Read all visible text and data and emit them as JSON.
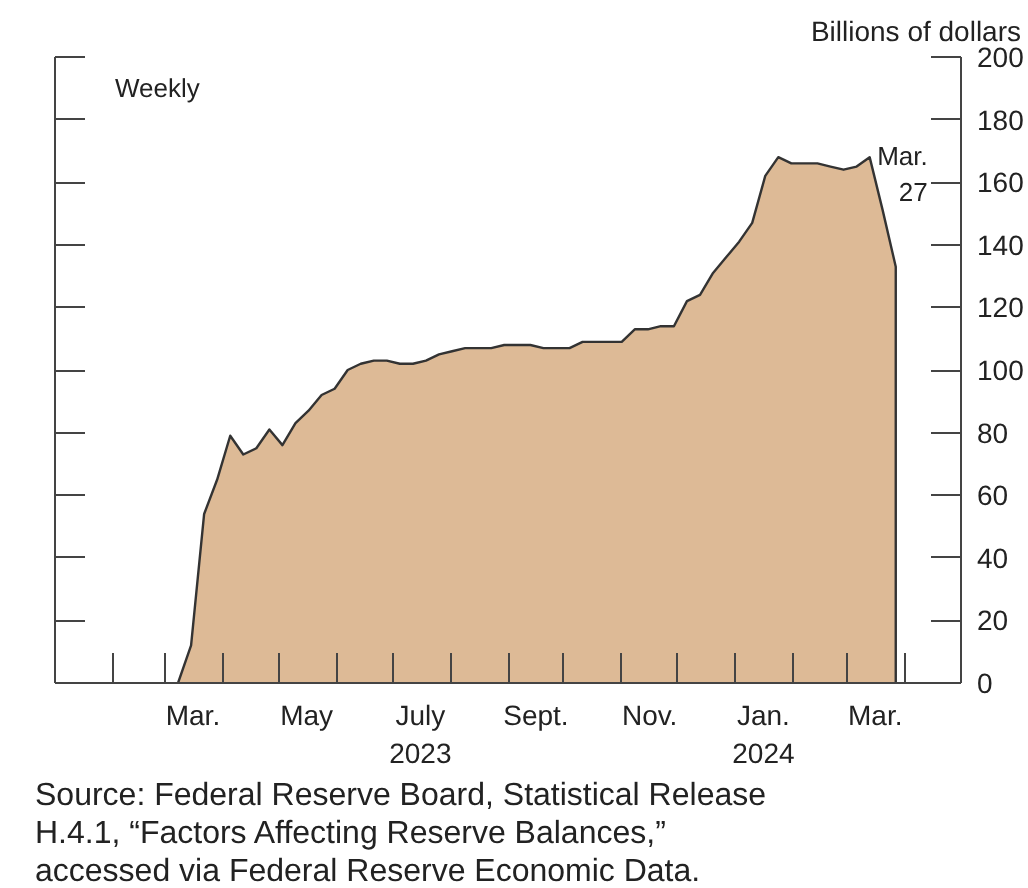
{
  "chart_data": {
    "type": "area",
    "ylabel": "Billions of dollars",
    "x": [
      "2023-03-08",
      "2023-03-15",
      "2023-03-22",
      "2023-03-29",
      "2023-04-05",
      "2023-04-12",
      "2023-04-19",
      "2023-04-26",
      "2023-05-03",
      "2023-05-10",
      "2023-05-17",
      "2023-05-24",
      "2023-05-31",
      "2023-06-07",
      "2023-06-14",
      "2023-06-21",
      "2023-06-28",
      "2023-07-05",
      "2023-07-12",
      "2023-07-19",
      "2023-07-26",
      "2023-08-02",
      "2023-08-09",
      "2023-08-16",
      "2023-08-23",
      "2023-08-30",
      "2023-09-06",
      "2023-09-13",
      "2023-09-20",
      "2023-09-27",
      "2023-10-04",
      "2023-10-11",
      "2023-10-18",
      "2023-10-25",
      "2023-11-01",
      "2023-11-08",
      "2023-11-15",
      "2023-11-22",
      "2023-11-29",
      "2023-12-06",
      "2023-12-13",
      "2023-12-20",
      "2023-12-27",
      "2024-01-03",
      "2024-01-10",
      "2024-01-17",
      "2024-01-24",
      "2024-01-31",
      "2024-02-07",
      "2024-02-14",
      "2024-02-21",
      "2024-02-28",
      "2024-03-06",
      "2024-03-13",
      "2024-03-20",
      "2024-03-27"
    ],
    "series": [
      {
        "color": "#ddba96",
        "values": [
          0,
          12,
          54,
          65,
          79,
          73,
          75,
          81,
          76,
          83,
          87,
          92,
          94,
          100,
          102,
          103,
          103,
          102,
          102,
          103,
          105,
          106,
          107,
          107,
          107,
          108,
          108,
          108,
          107,
          107,
          107,
          109,
          109,
          109,
          109,
          113,
          113,
          114,
          114,
          122,
          124,
          131,
          136,
          141,
          147,
          162,
          168,
          166,
          166,
          166,
          165,
          164,
          165,
          168,
          151,
          133
        ]
      }
    ],
    "xlim": [
      "2023-01-01",
      "2024-05-01"
    ],
    "xticks": [
      {
        "value": "2023-01-01",
        "label": null
      },
      {
        "value": "2023-02-01",
        "label": null
      },
      {
        "value": "2023-03-01",
        "label": null
      },
      {
        "value": "2023-04-01",
        "label": null
      },
      {
        "value": "2023-05-01",
        "label": null
      },
      {
        "value": "2023-06-01",
        "label": null
      },
      {
        "value": "2023-07-01",
        "label": null
      },
      {
        "value": "2023-08-01",
        "label": null
      },
      {
        "value": "2023-09-01",
        "label": null
      },
      {
        "value": "2023-10-01",
        "label": null
      },
      {
        "value": "2023-11-01",
        "label": null
      },
      {
        "value": "2023-12-01",
        "label": null
      },
      {
        "value": "2024-01-01",
        "label": null
      },
      {
        "value": "2024-02-01",
        "label": null
      },
      {
        "value": "2024-03-01",
        "label": null
      },
      {
        "value": "2024-04-01",
        "label": null
      },
      {
        "value": "2023-03-16",
        "label": "Mar."
      },
      {
        "value": "2023-05-16",
        "label": "May"
      },
      {
        "value": "2023-07-16",
        "label": "July\n2023"
      },
      {
        "value": "2023-09-16",
        "label": "Sept."
      },
      {
        "value": "2023-11-16",
        "label": "Nov."
      },
      {
        "value": "2024-01-16",
        "label": "Jan.\n2024"
      },
      {
        "value": "2024-03-16",
        "label": "Mar."
      }
    ],
    "ylim": [
      0,
      200
    ],
    "yticks": [
      0,
      20,
      40,
      60,
      80,
      100,
      120,
      140,
      160,
      180,
      200
    ],
    "grid": false,
    "annotations": [
      "Weekly",
      {
        "text": "Mar.\n27",
        "x": "2024-03-27",
        "y": 133
      },
      "Source: Federal Reserve Board, Statistical Release\nH.4.1, “Factors Affecting Reserve Balances,”\naccessed via Federal Reserve Economic Data."
    ]
  }
}
